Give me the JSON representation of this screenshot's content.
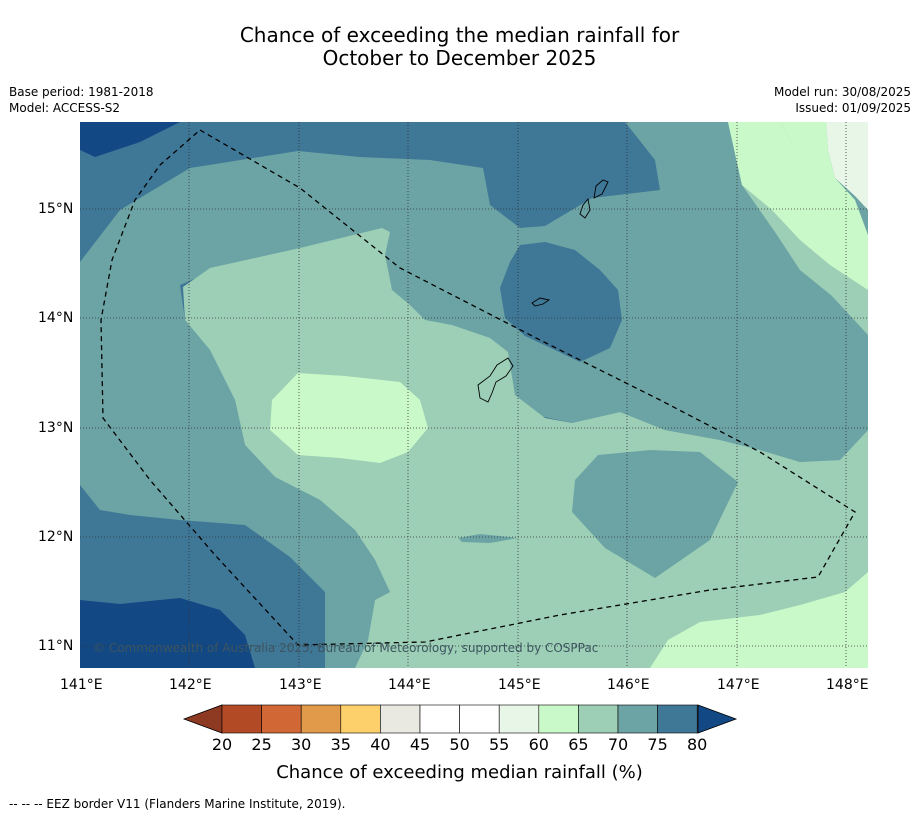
{
  "header": {
    "title_line1": "Chance of exceeding the median rainfall for",
    "title_line2": "October to December 2025",
    "base_period": "Base period: 1981-2018",
    "model": "Model: ACCESS-S2",
    "model_run": "Model run: 30/08/2025",
    "issued": "Issued: 01/09/2025"
  },
  "map": {
    "copyright": "© Commonwealth of Australia 2025, Bureau of Meteorology, supported by COSPPac",
    "lon_labels": [
      "141°E",
      "142°E",
      "143°E",
      "144°E",
      "145°E",
      "146°E",
      "147°E",
      "148°E"
    ],
    "lat_labels": [
      "15°N",
      "14°N",
      "13°N",
      "12°N",
      "11°N"
    ],
    "grid": "dotted",
    "eez_style": "dashed black"
  },
  "colorbar": {
    "ticks": [
      "20",
      "25",
      "30",
      "35",
      "40",
      "45",
      "50",
      "55",
      "60",
      "65",
      "70",
      "75",
      "80"
    ],
    "colors": [
      "#b24a26",
      "#d06734",
      "#e19a4a",
      "#fdd06c",
      "#e9e8e1",
      "#ffffff",
      "#ffffff",
      "#e7f6e7",
      "#caf9c9",
      "#9dcfb6",
      "#6ca4a5",
      "#3f7797",
      "#124884"
    ],
    "title": "Chance of exceeding median rainfall (%)"
  },
  "legend_footer": "--  --  -- EEZ border V11 (Flanders Marine Institute, 2019)."
}
